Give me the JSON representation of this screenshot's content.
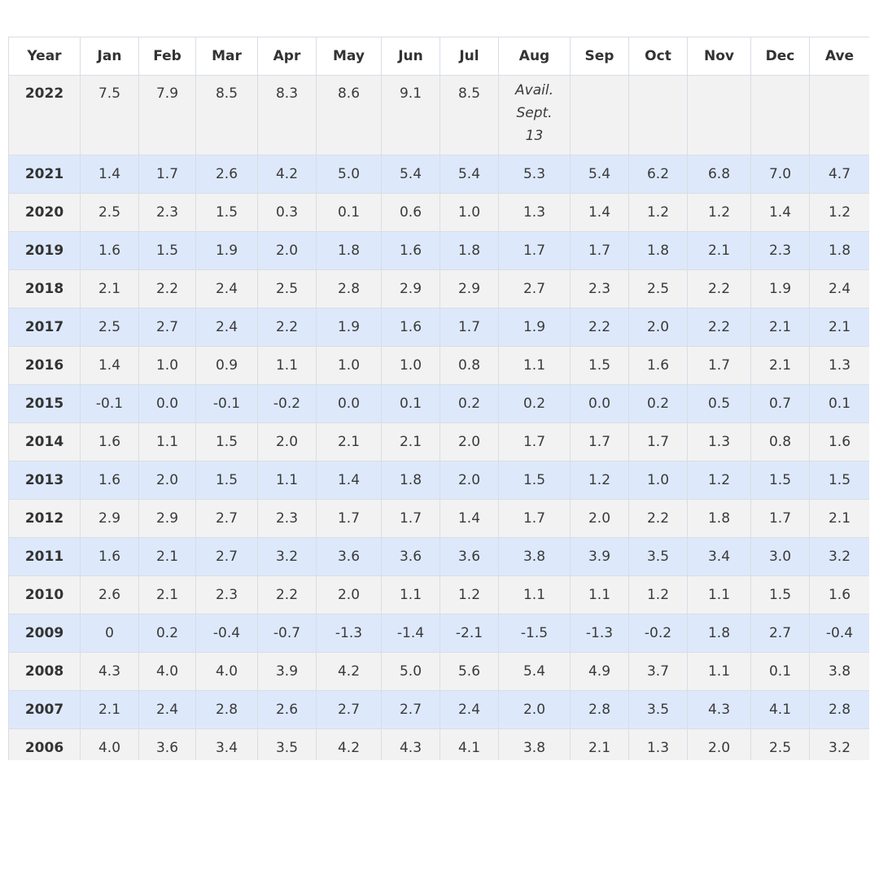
{
  "chart_data": {
    "type": "table",
    "columns": [
      "Year",
      "Jan",
      "Feb",
      "Mar",
      "Apr",
      "May",
      "Jun",
      "Jul",
      "Aug",
      "Sep",
      "Oct",
      "Nov",
      "Dec",
      "Ave"
    ],
    "rows": [
      [
        "2022",
        "7.5",
        "7.9",
        "8.5",
        "8.3",
        "8.6",
        "9.1",
        "8.5",
        "Avail. Sept. 13",
        "",
        "",
        "",
        "",
        ""
      ],
      [
        "2021",
        "1.4",
        "1.7",
        "2.6",
        "4.2",
        "5.0",
        "5.4",
        "5.4",
        "5.3",
        "5.4",
        "6.2",
        "6.8",
        "7.0",
        "4.7"
      ],
      [
        "2020",
        "2.5",
        "2.3",
        "1.5",
        "0.3",
        "0.1",
        "0.6",
        "1.0",
        "1.3",
        "1.4",
        "1.2",
        "1.2",
        "1.4",
        "1.2"
      ],
      [
        "2019",
        "1.6",
        "1.5",
        "1.9",
        "2.0",
        "1.8",
        "1.6",
        "1.8",
        "1.7",
        "1.7",
        "1.8",
        "2.1",
        "2.3",
        "1.8"
      ],
      [
        "2018",
        "2.1",
        "2.2",
        "2.4",
        "2.5",
        "2.8",
        "2.9",
        "2.9",
        "2.7",
        "2.3",
        "2.5",
        "2.2",
        "1.9",
        "2.4"
      ],
      [
        "2017",
        "2.5",
        "2.7",
        "2.4",
        "2.2",
        "1.9",
        "1.6",
        "1.7",
        "1.9",
        "2.2",
        "2.0",
        "2.2",
        "2.1",
        "2.1"
      ],
      [
        "2016",
        "1.4",
        "1.0",
        "0.9",
        "1.1",
        "1.0",
        "1.0",
        "0.8",
        "1.1",
        "1.5",
        "1.6",
        "1.7",
        "2.1",
        "1.3"
      ],
      [
        "2015",
        "-0.1",
        "0.0",
        "-0.1",
        "-0.2",
        "0.0",
        "0.1",
        "0.2",
        "0.2",
        "0.0",
        "0.2",
        "0.5",
        "0.7",
        "0.1"
      ],
      [
        "2014",
        "1.6",
        "1.1",
        "1.5",
        "2.0",
        "2.1",
        "2.1",
        "2.0",
        "1.7",
        "1.7",
        "1.7",
        "1.3",
        "0.8",
        "1.6"
      ],
      [
        "2013",
        "1.6",
        "2.0",
        "1.5",
        "1.1",
        "1.4",
        "1.8",
        "2.0",
        "1.5",
        "1.2",
        "1.0",
        "1.2",
        "1.5",
        "1.5"
      ],
      [
        "2012",
        "2.9",
        "2.9",
        "2.7",
        "2.3",
        "1.7",
        "1.7",
        "1.4",
        "1.7",
        "2.0",
        "2.2",
        "1.8",
        "1.7",
        "2.1"
      ],
      [
        "2011",
        "1.6",
        "2.1",
        "2.7",
        "3.2",
        "3.6",
        "3.6",
        "3.6",
        "3.8",
        "3.9",
        "3.5",
        "3.4",
        "3.0",
        "3.2"
      ],
      [
        "2010",
        "2.6",
        "2.1",
        "2.3",
        "2.2",
        "2.0",
        "1.1",
        "1.2",
        "1.1",
        "1.1",
        "1.2",
        "1.1",
        "1.5",
        "1.6"
      ],
      [
        "2009",
        "0",
        "0.2",
        "-0.4",
        "-0.7",
        "-1.3",
        "-1.4",
        "-2.1",
        "-1.5",
        "-1.3",
        "-0.2",
        "1.8",
        "2.7",
        "-0.4"
      ],
      [
        "2008",
        "4.3",
        "4.0",
        "4.0",
        "3.9",
        "4.2",
        "5.0",
        "5.6",
        "5.4",
        "4.9",
        "3.7",
        "1.1",
        "0.1",
        "3.8"
      ],
      [
        "2007",
        "2.1",
        "2.4",
        "2.8",
        "2.6",
        "2.7",
        "2.7",
        "2.4",
        "2.0",
        "2.8",
        "3.5",
        "4.3",
        "4.1",
        "2.8"
      ],
      [
        "2006",
        "4.0",
        "3.6",
        "3.4",
        "3.5",
        "4.2",
        "4.3",
        "4.1",
        "3.8",
        "2.1",
        "1.3",
        "2.0",
        "2.5",
        "3.2"
      ]
    ]
  },
  "colors": {
    "row_odd": "#f2f2f2",
    "row_even": "#dde9fb",
    "border": "#d9dde5",
    "text": "#3a3a3a"
  }
}
